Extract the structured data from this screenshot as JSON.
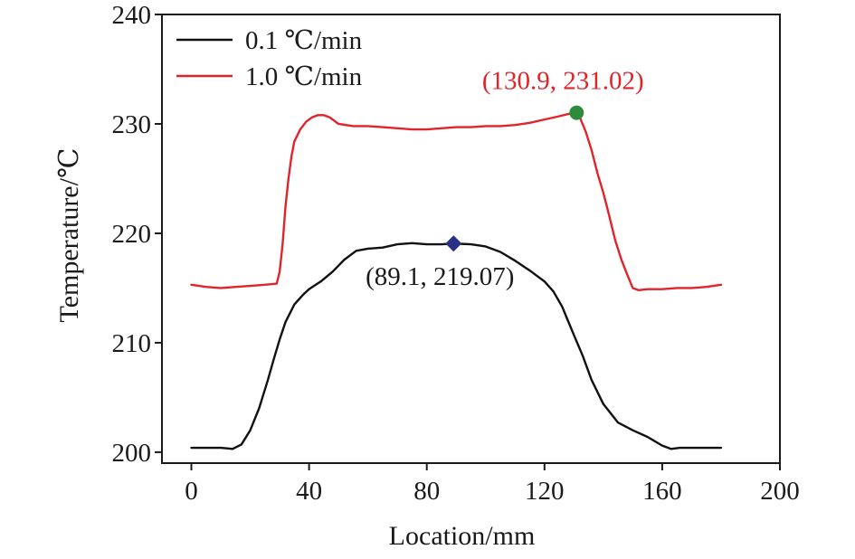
{
  "chart_data": {
    "type": "line",
    "title": "",
    "xlabel": "Location/mm",
    "ylabel": "Temperature/℃",
    "xlim": [
      -10,
      200
    ],
    "ylim": [
      199,
      240
    ],
    "xticks": [
      0,
      40,
      80,
      120,
      160,
      200
    ],
    "yticks": [
      200,
      210,
      220,
      230,
      240
    ],
    "grid": false,
    "legend_position": "top-left",
    "series": [
      {
        "name": "0.1 ℃/min",
        "color": "#111111",
        "x": [
          0,
          10,
          14,
          17,
          20,
          23,
          26,
          28,
          30,
          32,
          35,
          38,
          40,
          44,
          48,
          52,
          56,
          60,
          65,
          70,
          75,
          80,
          85,
          89.1,
          95,
          100,
          105,
          110,
          115,
          120,
          123,
          126,
          128,
          130,
          133,
          136,
          140,
          145,
          150,
          155,
          160,
          163,
          166,
          170,
          175,
          180
        ],
        "y": [
          200.4,
          200.4,
          200.3,
          200.7,
          202,
          204,
          206.6,
          208.5,
          210.3,
          211.9,
          213.5,
          214.4,
          214.9,
          215.6,
          216.5,
          217.6,
          218.4,
          218.6,
          218.7,
          219.0,
          219.1,
          219.0,
          219.0,
          219.07,
          219.0,
          218.8,
          218.3,
          217.5,
          216.6,
          215.6,
          214.7,
          213.3,
          212.0,
          210.7,
          208.8,
          206.6,
          204.4,
          202.7,
          202.0,
          201.4,
          200.6,
          200.3,
          200.4,
          200.4,
          200.4,
          200.4
        ]
      },
      {
        "name": "1.0 ℃/min",
        "color": "#e0242a",
        "x": [
          0,
          5,
          10,
          15,
          20,
          25,
          29,
          30,
          31,
          32,
          33,
          34,
          35,
          37,
          39,
          41,
          43,
          45,
          47,
          50,
          55,
          60,
          65,
          70,
          75,
          80,
          85,
          90,
          95,
          100,
          105,
          110,
          115,
          120,
          125,
          128,
          130.9,
          132,
          134,
          136,
          138,
          140,
          142,
          144,
          146,
          148,
          150,
          151,
          152,
          155,
          160,
          165,
          170,
          175,
          180
        ],
        "y": [
          215.3,
          215.1,
          215.0,
          215.1,
          215.2,
          215.3,
          215.4,
          216.5,
          219,
          222.5,
          225,
          227,
          228.4,
          229.5,
          230.2,
          230.6,
          230.8,
          230.8,
          230.6,
          230.0,
          229.8,
          229.8,
          229.7,
          229.6,
          229.5,
          229.5,
          229.6,
          229.7,
          229.7,
          229.8,
          229.8,
          229.9,
          230.1,
          230.4,
          230.7,
          230.9,
          231.02,
          230.6,
          229.3,
          227.6,
          225.5,
          223.7,
          221.6,
          219.4,
          217.7,
          216.3,
          215.0,
          214.9,
          214.8,
          214.9,
          214.9,
          215.0,
          215.0,
          215.1,
          215.3
        ]
      }
    ],
    "markers": [
      {
        "series": "0.1 ℃/min",
        "x": 89.1,
        "y": 219.07,
        "shape": "diamond",
        "color": "#2b3087"
      },
      {
        "series": "1.0 ℃/min",
        "x": 130.9,
        "y": 231.02,
        "shape": "circle",
        "color": "#2e8b3e"
      }
    ],
    "annotations": [
      {
        "text": "(89.1, 219.07)",
        "color": "#1a1a1a",
        "anchor_x": 89.1,
        "anchor_y": 219.07,
        "placement": "below"
      },
      {
        "text": "(130.9, 231.02)",
        "color": "#e0242a",
        "anchor_x": 130.9,
        "anchor_y": 231.02,
        "placement": "above"
      }
    ]
  }
}
